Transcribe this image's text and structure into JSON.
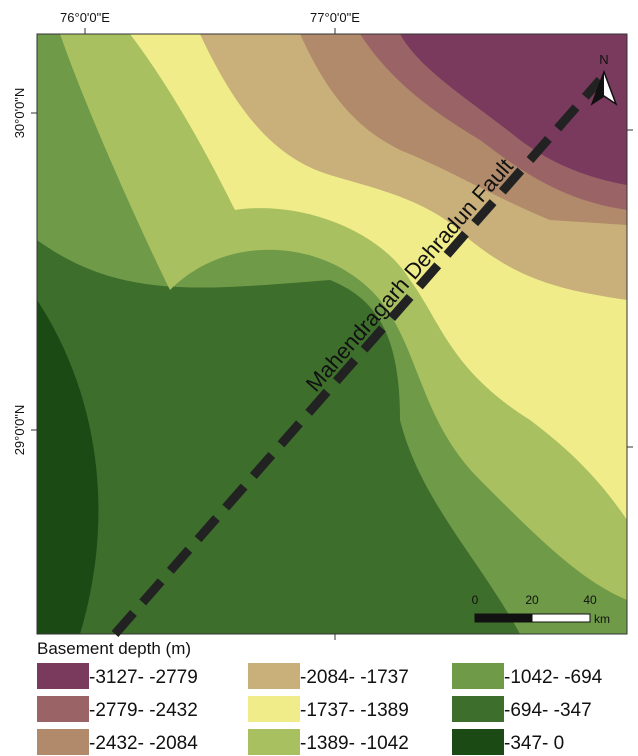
{
  "map": {
    "longitude_labels": [
      "76°0'0\"E",
      "77°0'0\"E"
    ],
    "latitude_labels": [
      "30°0'0\"N",
      "29°0'0\"N"
    ],
    "fault_label": "Mahendragarh Dehradun Fault",
    "north_label": "N",
    "scale_bar": {
      "labels": [
        "0",
        "20",
        "40"
      ],
      "unit": "km"
    }
  },
  "legend": {
    "title": "Basement depth (m)",
    "items": [
      {
        "label": "-3127- -2779",
        "color": "#7a3a5e"
      },
      {
        "label": "-2779- -2432",
        "color": "#9a6466"
      },
      {
        "label": "-2432- -2084",
        "color": "#b08a6a"
      },
      {
        "label": "-2084- -1737",
        "color": "#c9b07a"
      },
      {
        "label": "-1737- -1389",
        "color": "#f0ec8a"
      },
      {
        "label": "-1389- -1042",
        "color": "#a8c060"
      },
      {
        "label": "-1042- -694",
        "color": "#6f9a48"
      },
      {
        "label": "-694- -347",
        "color": "#3e6e2c"
      },
      {
        "label": "-347- 0",
        "color": "#1c4a14"
      }
    ]
  }
}
